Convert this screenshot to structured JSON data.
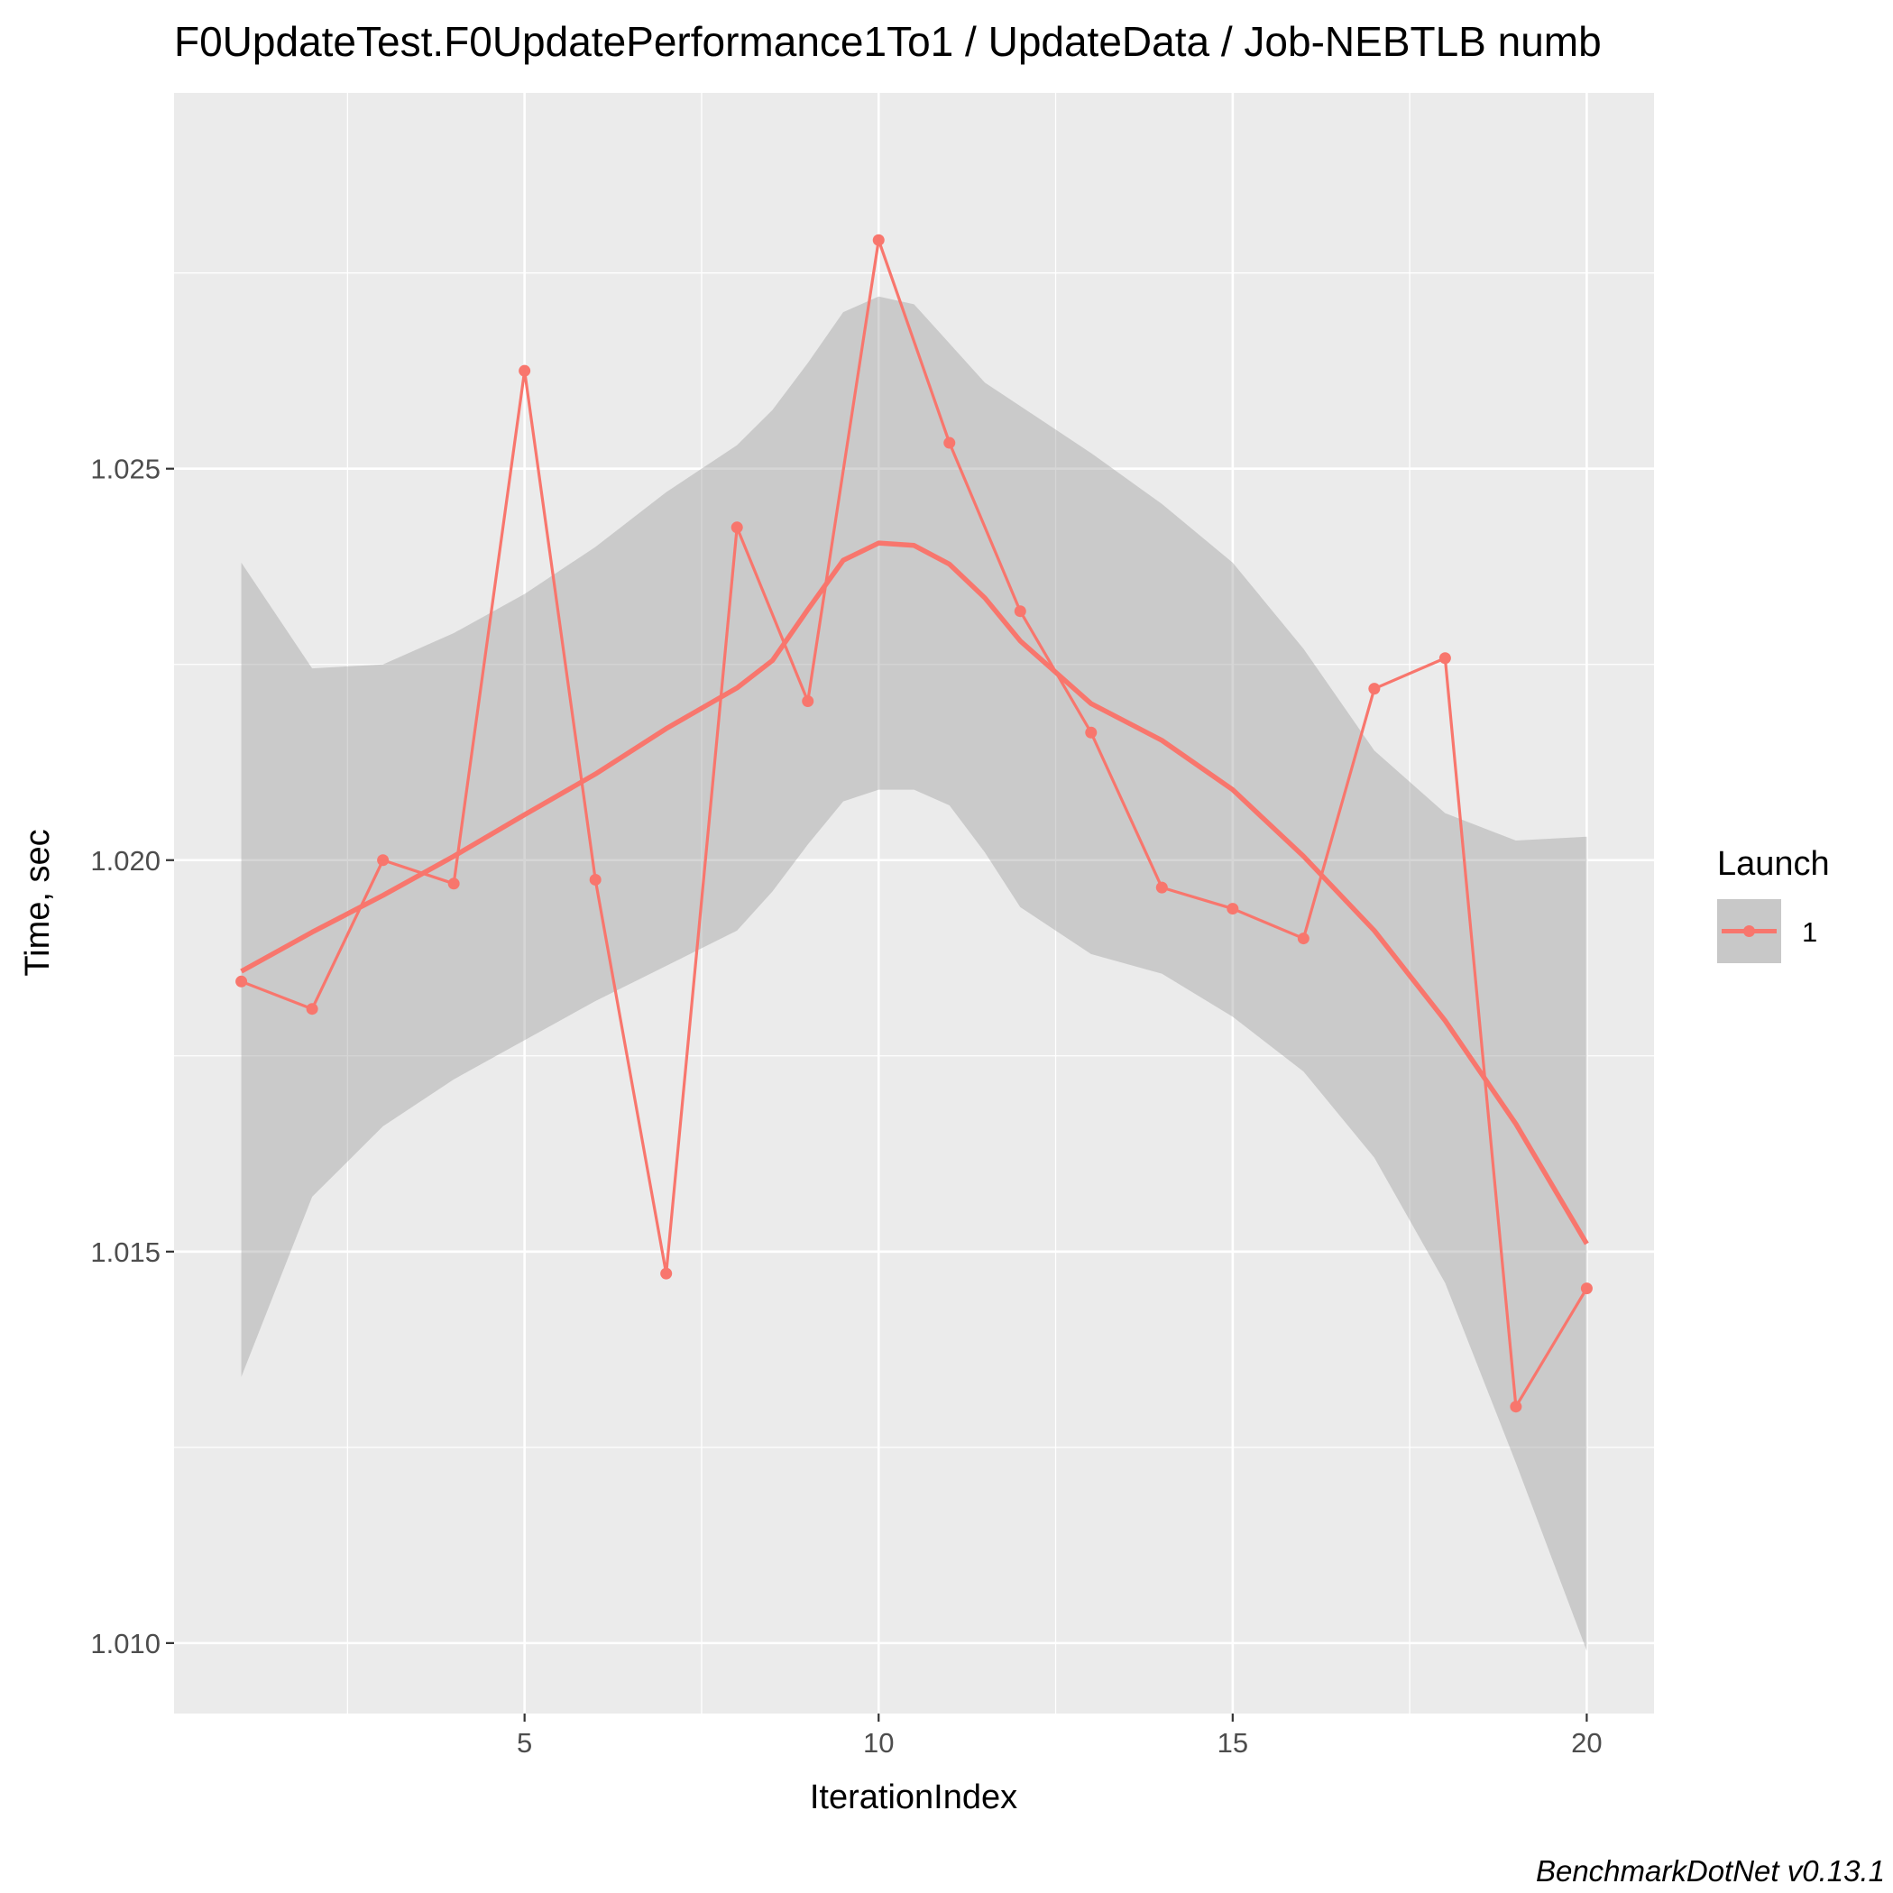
{
  "chart_data": {
    "type": "line",
    "title": "F0UpdateTest.F0UpdatePerformance1To1 / UpdateData / Job-NEBTLB numb",
    "xlabel": "IterationIndex",
    "ylabel": "Time, sec",
    "caption": "BenchmarkDotNet v0.13.1",
    "xlim": [
      0.05,
      20.95
    ],
    "ylim": [
      1.0091,
      1.0298
    ],
    "x_ticks": [
      5,
      10,
      15,
      20
    ],
    "x_tick_labels": [
      "5",
      "10",
      "15",
      "20"
    ],
    "x_minor_ticks": [
      2.5,
      7.5,
      12.5,
      17.5
    ],
    "y_ticks": [
      1.01,
      1.015,
      1.02,
      1.025
    ],
    "y_tick_labels": [
      "1.010",
      "1.015",
      "1.020",
      "1.025"
    ],
    "y_minor_ticks": [
      1.0125,
      1.0175,
      1.0225,
      1.0275
    ],
    "grid": true,
    "legend": {
      "title": "Launch",
      "placement": "right",
      "entries": [
        "1"
      ]
    },
    "colors": {
      "series": "#f8766d",
      "band": "#c8c8c8",
      "panel": "#ebebeb",
      "grid": "#ffffff"
    },
    "series": [
      {
        "name": "1",
        "x": [
          1,
          2,
          3,
          4,
          5,
          6,
          7,
          8,
          9,
          10,
          11,
          12,
          13,
          14,
          15,
          16,
          17,
          18,
          19,
          20
        ],
        "values": [
          1.01845,
          1.0181,
          1.02,
          1.0197,
          1.02625,
          1.01975,
          1.01472,
          1.02425,
          1.02203,
          1.02792,
          1.02533,
          1.02318,
          1.02163,
          1.01965,
          1.01938,
          1.019,
          1.02219,
          1.02258,
          1.01302,
          1.01453
        ]
      }
    ],
    "smooth": {
      "x": [
        1,
        2,
        3,
        4,
        5,
        6,
        7,
        8,
        8.5,
        9,
        9.5,
        10,
        10.5,
        11,
        11.5,
        12,
        13,
        14,
        15,
        16,
        17,
        18,
        19,
        20
      ],
      "fit": [
        1.01858,
        1.01908,
        1.01955,
        1.02005,
        1.02058,
        1.0211,
        1.02168,
        1.0222,
        1.02255,
        1.0232,
        1.02383,
        1.02405,
        1.02402,
        1.02378,
        1.02335,
        1.0228,
        1.022,
        1.02153,
        1.0209,
        1.02005,
        1.0191,
        1.01795,
        1.01663,
        1.0151
      ],
      "lower": [
        1.0134,
        1.0157,
        1.0166,
        1.0172,
        1.0177,
        1.0182,
        1.01865,
        1.0191,
        1.0196,
        1.0202,
        1.02075,
        1.0209,
        1.0209,
        1.0207,
        1.0201,
        1.0194,
        1.0188,
        1.01855,
        1.018,
        1.0173,
        1.0162,
        1.0146,
        1.0123,
        1.0099
      ],
      "upper": [
        1.0238,
        1.02245,
        1.0225,
        1.0229,
        1.0234,
        1.024,
        1.0247,
        1.0253,
        1.02575,
        1.02635,
        1.027,
        1.0272,
        1.0271,
        1.0266,
        1.0261,
        1.0258,
        1.0252,
        1.02455,
        1.0238,
        1.0227,
        1.0214,
        1.0206,
        1.02025,
        1.0203
      ]
    }
  }
}
